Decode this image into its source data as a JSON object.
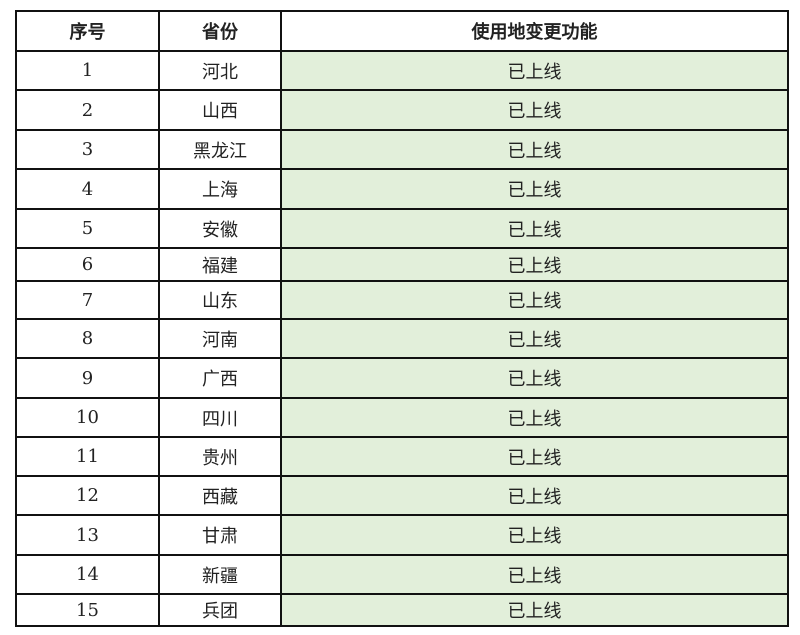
{
  "header": {
    "index": "序号",
    "province": "省份",
    "feature": "使用地变更功能"
  },
  "status_color": "#e2efda",
  "rows": [
    {
      "index": "1",
      "province": "河北",
      "status": "已上线"
    },
    {
      "index": "2",
      "province": "山西",
      "status": "已上线"
    },
    {
      "index": "3",
      "province": "黑龙江",
      "status": "已上线"
    },
    {
      "index": "4",
      "province": "上海",
      "status": "已上线"
    },
    {
      "index": "5",
      "province": "安徽",
      "status": "已上线"
    },
    {
      "index": "6",
      "province": "福建",
      "status": "已上线"
    },
    {
      "index": "7",
      "province": "山东",
      "status": "已上线"
    },
    {
      "index": "8",
      "province": "河南",
      "status": "已上线"
    },
    {
      "index": "9",
      "province": "广西",
      "status": "已上线"
    },
    {
      "index": "10",
      "province": "四川",
      "status": "已上线"
    },
    {
      "index": "11",
      "province": "贵州",
      "status": "已上线"
    },
    {
      "index": "12",
      "province": "西藏",
      "status": "已上线"
    },
    {
      "index": "13",
      "province": "甘肃",
      "status": "已上线"
    },
    {
      "index": "14",
      "province": "新疆",
      "status": "已上线"
    },
    {
      "index": "15",
      "province": "兵团",
      "status": "已上线"
    }
  ]
}
